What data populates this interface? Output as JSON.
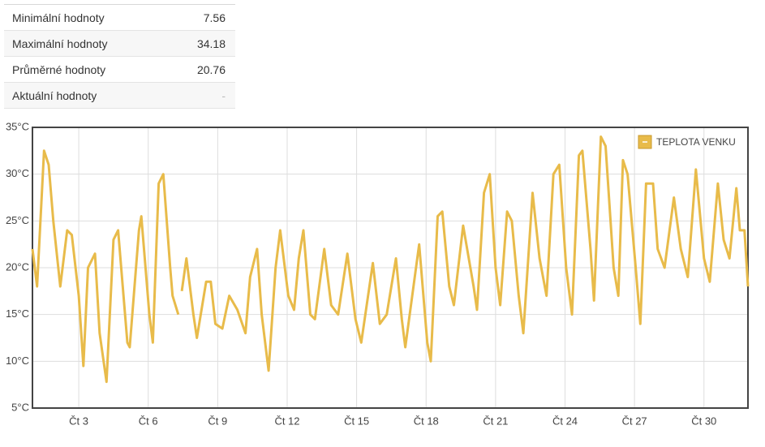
{
  "stats": {
    "rows": [
      [
        "Minimální hodnoty",
        7.56
      ],
      [
        "Maximální hodnoty",
        34.18
      ],
      [
        "Průměrné hodnoty",
        20.76
      ],
      [
        "Aktuální hodnoty",
        "-"
      ]
    ]
  },
  "chart_data": {
    "type": "line",
    "x": [
      1.0,
      1.2,
      1.5,
      1.7,
      1.9,
      2.2,
      2.5,
      2.7,
      3.0,
      3.2,
      3.4,
      3.7,
      3.9,
      4.2,
      4.5,
      4.7,
      4.9,
      5.1,
      5.2,
      5.6,
      5.7,
      6.05,
      6.2,
      6.45,
      6.65,
      6.95,
      7.05,
      7.3,
      7.4,
      7.45,
      7.65,
      7.95,
      8.1,
      8.5,
      8.7,
      8.9,
      9.2,
      9.5,
      9.85,
      10.2,
      10.4,
      10.7,
      10.9,
      11.2,
      11.5,
      11.7,
      12.05,
      12.3,
      12.5,
      12.7,
      13.0,
      13.2,
      13.6,
      13.9,
      14.2,
      14.6,
      14.95,
      15.2,
      15.7,
      16.0,
      16.3,
      16.7,
      16.95,
      17.1,
      17.7,
      18.05,
      18.2,
      18.5,
      18.7,
      19.0,
      19.2,
      19.6,
      20.05,
      20.2,
      20.5,
      20.75,
      21.0,
      21.2,
      21.5,
      21.7,
      22.0,
      22.2,
      22.6,
      22.9,
      23.2,
      23.5,
      23.75,
      24.05,
      24.3,
      24.6,
      24.75,
      25.1,
      25.25,
      25.55,
      25.75,
      26.1,
      26.3,
      26.5,
      26.7,
      27.05,
      27.25,
      27.5,
      27.8,
      28.0,
      28.3,
      28.7,
      29.0,
      29.3,
      29.65,
      30.0,
      30.25,
      30.6,
      30.85,
      31.1,
      31.4,
      31.55,
      31.75,
      31.9
    ],
    "series": [
      {
        "name": "TEPLOTA VENKU",
        "color": "#e8bb4a",
        "values": [
          22,
          18,
          32.5,
          31,
          25,
          18,
          24,
          23.5,
          17,
          9.5,
          20,
          21.5,
          13,
          7.8,
          23,
          24,
          18,
          12,
          11.5,
          24,
          25.5,
          15,
          12,
          29,
          30,
          20,
          17,
          15,
          null,
          17.5,
          21,
          15,
          12.5,
          18.5,
          18.5,
          14,
          13.5,
          17,
          15.5,
          13,
          19,
          22,
          15,
          9,
          20,
          24,
          17,
          15.5,
          21,
          24,
          15,
          14.5,
          22,
          16,
          15,
          21.5,
          14.5,
          12,
          20.5,
          14,
          15,
          21,
          14.5,
          11.5,
          22.5,
          12,
          10,
          25.5,
          26,
          18,
          16,
          24.5,
          18,
          15.5,
          28,
          30,
          20,
          16,
          26,
          25,
          17,
          13,
          28,
          21,
          17,
          30,
          31,
          20,
          15,
          32,
          32.5,
          22,
          16.5,
          34,
          33,
          20,
          17,
          31.5,
          30,
          20,
          14,
          29,
          29,
          22,
          20,
          27.5,
          22,
          19,
          30.5,
          21,
          18.5,
          29,
          23,
          21,
          28.5,
          24,
          24,
          18
        ]
      }
    ],
    "xlim": [
      1,
      31.9
    ],
    "xticks": [
      {
        "value": 3,
        "label": "Čt 3"
      },
      {
        "value": 6,
        "label": "Čt 6"
      },
      {
        "value": 9,
        "label": "Čt 9"
      },
      {
        "value": 12,
        "label": "Čt 12"
      },
      {
        "value": 15,
        "label": "Čt 15"
      },
      {
        "value": 18,
        "label": "Čt 18"
      },
      {
        "value": 21,
        "label": "Čt 21"
      },
      {
        "value": 24,
        "label": "Čt 24"
      },
      {
        "value": 27,
        "label": "Čt 27"
      },
      {
        "value": 30,
        "label": "Čt 30"
      }
    ],
    "ylim": [
      5,
      35
    ],
    "yticks": [
      {
        "value": 5,
        "label": "5°C"
      },
      {
        "value": 10,
        "label": "10°C"
      },
      {
        "value": 15,
        "label": "15°C"
      },
      {
        "value": 20,
        "label": "20°C"
      },
      {
        "value": 25,
        "label": "25°C"
      },
      {
        "value": 30,
        "label": "30°C"
      },
      {
        "value": 35,
        "label": "35°C"
      }
    ],
    "grid": true,
    "legend": "top-right"
  }
}
